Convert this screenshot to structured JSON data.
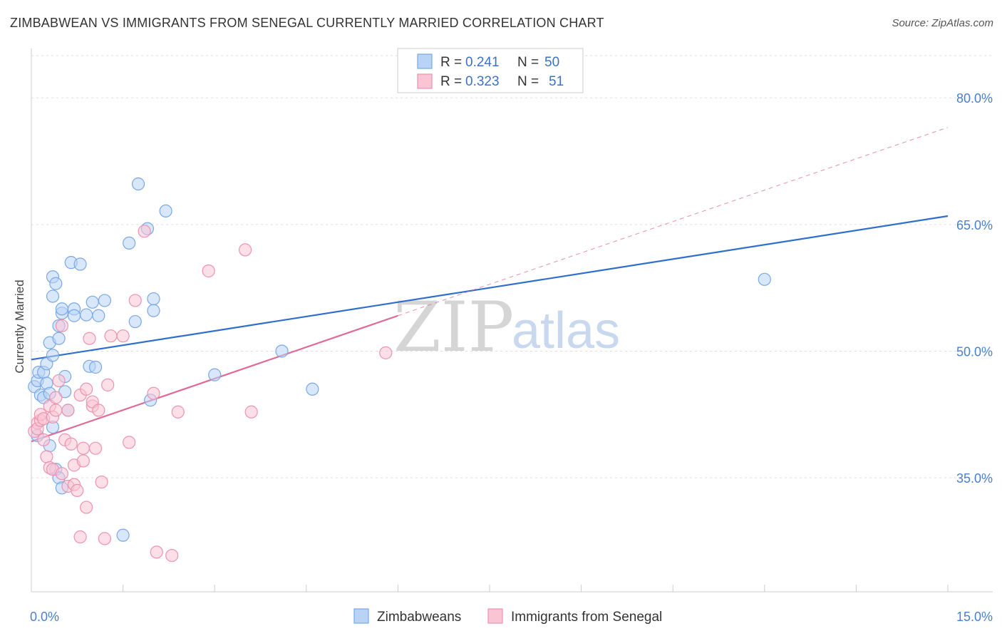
{
  "header": {
    "title": "ZIMBABWEAN VS IMMIGRANTS FROM SENEGAL CURRENTLY MARRIED CORRELATION CHART",
    "source": "Source: ZipAtlas.com"
  },
  "watermark": {
    "zip": "ZIP",
    "atlas": "atlas"
  },
  "colors": {
    "blue_fill": "#b8d3f5",
    "blue_stroke": "#7aa8e6",
    "blue_line": "#2f6fcb",
    "pink_fill": "#f9c4d4",
    "pink_stroke": "#ec93b0",
    "pink_line": "#e06a96",
    "grid": "#dddddd",
    "tick_text": "#4a7fd0"
  },
  "chart_data": {
    "type": "scatter",
    "title": "ZIMBABWEAN VS IMMIGRANTS FROM SENEGAL CURRENTLY MARRIED CORRELATION CHART",
    "xlabel": "",
    "ylabel": "Currently Married",
    "xlim": [
      0,
      15
    ],
    "ylim": [
      21.5,
      85
    ],
    "y_ticks": [
      35,
      50,
      65,
      80
    ],
    "y_tick_labels": [
      "35.0%",
      "50.0%",
      "65.0%",
      "80.0%"
    ],
    "x_tick_labels": [
      "0.0%",
      "15.0%"
    ],
    "legend": [
      {
        "r_label": "R = ",
        "r_value": "0.241",
        "n_label": "N = ",
        "n_value": "50"
      },
      {
        "r_label": "R = ",
        "r_value": "0.323",
        "n_label": "N = ",
        "n_value": "51"
      }
    ],
    "series": [
      {
        "name": "Zimbabweans",
        "points": [
          [
            0.05,
            45.8
          ],
          [
            0.1,
            46.5
          ],
          [
            0.12,
            47.5
          ],
          [
            0.15,
            44.8
          ],
          [
            0.2,
            44.5
          ],
          [
            0.2,
            47.5
          ],
          [
            0.25,
            46.2
          ],
          [
            0.25,
            48.5
          ],
          [
            0.3,
            45.0
          ],
          [
            0.3,
            38.8
          ],
          [
            0.3,
            51.0
          ],
          [
            0.35,
            41.0
          ],
          [
            0.35,
            49.5
          ],
          [
            0.35,
            56.5
          ],
          [
            0.35,
            58.8
          ],
          [
            0.4,
            58.0
          ],
          [
            0.45,
            53.0
          ],
          [
            0.45,
            51.5
          ],
          [
            0.4,
            36.0
          ],
          [
            0.45,
            35.0
          ],
          [
            0.5,
            33.8
          ],
          [
            0.5,
            54.5
          ],
          [
            0.5,
            55.0
          ],
          [
            0.55,
            45.2
          ],
          [
            0.55,
            47.0
          ],
          [
            0.6,
            43.0
          ],
          [
            0.65,
            60.5
          ],
          [
            0.7,
            55.0
          ],
          [
            0.7,
            54.2
          ],
          [
            0.8,
            60.3
          ],
          [
            0.9,
            54.3
          ],
          [
            0.95,
            48.2
          ],
          [
            1.0,
            55.8
          ],
          [
            1.05,
            48.1
          ],
          [
            1.1,
            54.2
          ],
          [
            1.2,
            56.0
          ],
          [
            1.5,
            28.2
          ],
          [
            1.6,
            62.8
          ],
          [
            1.7,
            53.5
          ],
          [
            1.75,
            69.8
          ],
          [
            1.9,
            64.5
          ],
          [
            1.95,
            44.2
          ],
          [
            2.0,
            54.8
          ],
          [
            2.0,
            56.2
          ],
          [
            2.2,
            66.6
          ],
          [
            3.0,
            47.2
          ],
          [
            4.1,
            50.0
          ],
          [
            4.6,
            45.5
          ],
          [
            12.0,
            58.5
          ],
          [
            0.1,
            40.0
          ]
        ]
      },
      {
        "name": "Immigrants from Senegal",
        "points": [
          [
            0.05,
            40.5
          ],
          [
            0.1,
            41.5
          ],
          [
            0.1,
            40.8
          ],
          [
            0.15,
            41.8
          ],
          [
            0.15,
            42.5
          ],
          [
            0.2,
            42.0
          ],
          [
            0.2,
            39.5
          ],
          [
            0.25,
            37.5
          ],
          [
            0.3,
            36.2
          ],
          [
            0.3,
            43.5
          ],
          [
            0.35,
            36.0
          ],
          [
            0.35,
            42.2
          ],
          [
            0.4,
            43.0
          ],
          [
            0.4,
            44.5
          ],
          [
            0.45,
            46.5
          ],
          [
            0.5,
            53.0
          ],
          [
            0.5,
            35.5
          ],
          [
            0.55,
            39.5
          ],
          [
            0.6,
            34.0
          ],
          [
            0.6,
            43.0
          ],
          [
            0.65,
            39.0
          ],
          [
            0.7,
            36.5
          ],
          [
            0.7,
            34.2
          ],
          [
            0.75,
            33.5
          ],
          [
            0.8,
            28.0
          ],
          [
            0.8,
            44.8
          ],
          [
            0.85,
            38.5
          ],
          [
            0.85,
            37.0
          ],
          [
            0.9,
            31.5
          ],
          [
            0.9,
            45.5
          ],
          [
            0.95,
            51.5
          ],
          [
            1.0,
            43.5
          ],
          [
            1.0,
            44.0
          ],
          [
            1.05,
            38.5
          ],
          [
            1.1,
            43.0
          ],
          [
            1.15,
            34.5
          ],
          [
            1.2,
            27.8
          ],
          [
            1.25,
            46.0
          ],
          [
            1.3,
            51.8
          ],
          [
            1.5,
            51.8
          ],
          [
            1.6,
            39.2
          ],
          [
            1.7,
            56.0
          ],
          [
            1.85,
            64.2
          ],
          [
            2.0,
            45.0
          ],
          [
            2.05,
            26.2
          ],
          [
            2.3,
            25.8
          ],
          [
            2.4,
            42.8
          ],
          [
            2.9,
            59.5
          ],
          [
            3.5,
            62.0
          ],
          [
            3.6,
            42.8
          ],
          [
            5.8,
            49.8
          ]
        ]
      }
    ],
    "trendlines": [
      {
        "series": "Zimbabweans",
        "x": [
          0.0,
          15.0
        ],
        "y": [
          49.0,
          66.0
        ],
        "style": "solid"
      },
      {
        "series": "Immigrants from Senegal",
        "x": [
          0.0,
          6.0
        ],
        "y": [
          39.3,
          54.2
        ],
        "style": "solid"
      },
      {
        "series": "Immigrants from Senegal",
        "x": [
          6.0,
          15.0
        ],
        "y": [
          54.2,
          76.5
        ],
        "style": "dashed"
      }
    ]
  }
}
